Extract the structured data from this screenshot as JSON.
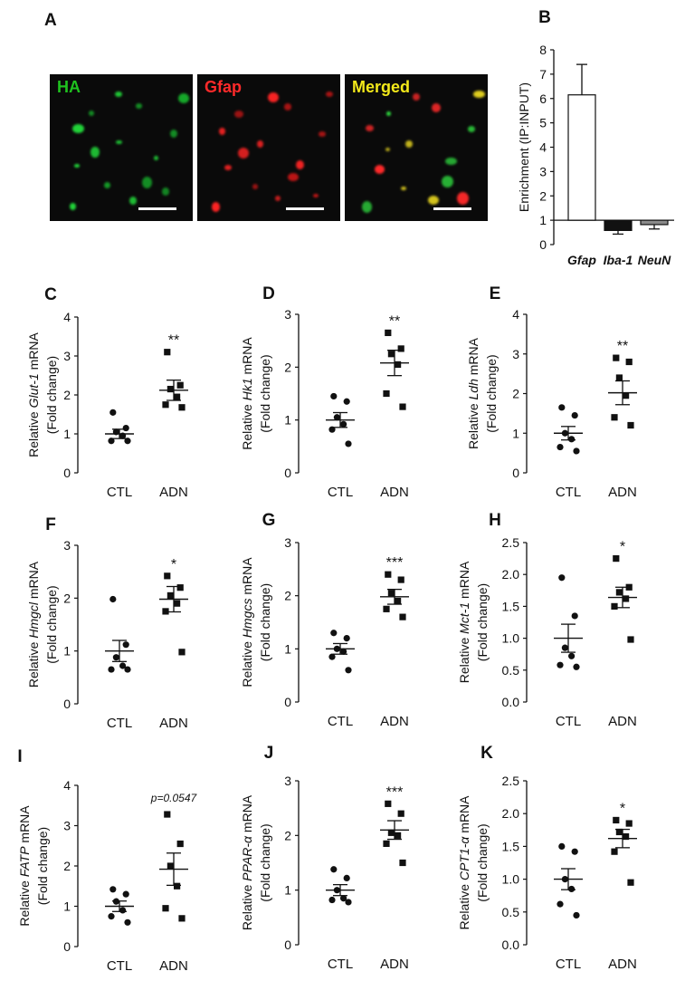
{
  "panel_a": {
    "letter": "A",
    "images": [
      {
        "label": "HA",
        "label_color": "#1fc21f",
        "cell_colors": [
          "#22d83a",
          "#16a82a"
        ]
      },
      {
        "label": "Gfap",
        "label_color": "#ff2a2a",
        "cell_colors": [
          "#ff2424",
          "#c41616"
        ]
      },
      {
        "label": "Merged",
        "label_color": "#f2e81a",
        "cell_colors": [
          "#ff2a2a",
          "#2fd83f",
          "#e8d620"
        ]
      }
    ]
  },
  "chart_data": [
    {
      "panel": "B",
      "type": "bar",
      "categories": [
        "Gfap",
        "Iba-1",
        "NeuN"
      ],
      "values": [
        6.15,
        0.58,
        0.82
      ],
      "errors": [
        1.25,
        0.15,
        0.18
      ],
      "colors": [
        "#ffffff",
        "#111111",
        "#8a8a8a"
      ],
      "baseline": 1,
      "ylabel": "Enrichment (IP:INPUT)",
      "ylim": [
        0,
        8
      ],
      "yticks": [
        "0",
        "1",
        "2",
        "3",
        "4",
        "5",
        "6",
        "7",
        "8"
      ],
      "grid": false
    },
    {
      "panel": "C",
      "type": "scatter",
      "gene": "Glut-1",
      "ylabel_prefix": "Relative ",
      "ylabel_suffix": " mRNA",
      "ylabel2": "(Fold change)",
      "categories": [
        "CTL",
        "ADN"
      ],
      "ylim": [
        0,
        4
      ],
      "yticks": [
        "0",
        "1",
        "2",
        "3",
        "4"
      ],
      "groups": [
        {
          "name": "CTL",
          "marker": "circle",
          "points": [
            1.55,
            1.15,
            1.05,
            0.95,
            0.82,
            0.82
          ],
          "mean": 1.0,
          "sem": 0.12
        },
        {
          "name": "ADN",
          "marker": "square",
          "points": [
            3.1,
            2.25,
            2.15,
            1.95,
            1.75,
            1.68
          ],
          "mean": 2.12,
          "sem": 0.26
        }
      ],
      "annotation": "**"
    },
    {
      "panel": "D",
      "type": "scatter",
      "gene": "Hk1",
      "ylabel_prefix": "Relative ",
      "ylabel_suffix": " mRNA",
      "ylabel2": "(Fold change)",
      "categories": [
        "CTL",
        "ADN"
      ],
      "ylim": [
        0,
        3
      ],
      "yticks": [
        "0",
        "1",
        "2",
        "3"
      ],
      "groups": [
        {
          "name": "CTL",
          "marker": "circle",
          "points": [
            1.45,
            1.35,
            1.05,
            0.92,
            0.82,
            0.55
          ],
          "mean": 1.0,
          "sem": 0.14
        },
        {
          "name": "ADN",
          "marker": "square",
          "points": [
            2.65,
            2.35,
            2.25,
            2.05,
            1.5,
            1.25
          ],
          "mean": 2.08,
          "sem": 0.24
        }
      ],
      "annotation": "**"
    },
    {
      "panel": "E",
      "type": "scatter",
      "gene": "Ldh",
      "ylabel_prefix": "Relative ",
      "ylabel_suffix": " mRNA",
      "ylabel2": "(Fold change)",
      "categories": [
        "CTL",
        "ADN"
      ],
      "ylim": [
        0,
        4
      ],
      "yticks": [
        "0",
        "1",
        "2",
        "3",
        "4"
      ],
      "groups": [
        {
          "name": "CTL",
          "marker": "circle",
          "points": [
            1.65,
            1.45,
            1.0,
            0.85,
            0.65,
            0.55
          ],
          "mean": 1.0,
          "sem": 0.17
        },
        {
          "name": "ADN",
          "marker": "square",
          "points": [
            2.9,
            2.8,
            2.4,
            1.95,
            1.4,
            1.2
          ],
          "mean": 2.02,
          "sem": 0.3
        }
      ],
      "annotation": "**"
    },
    {
      "panel": "F",
      "type": "scatter",
      "gene": "Hmgcl",
      "ylabel_prefix": "Relative ",
      "ylabel_suffix": " mRNA",
      "ylabel2": "(Fold change)",
      "categories": [
        "CTL",
        "ADN"
      ],
      "ylim": [
        0,
        3
      ],
      "yticks": [
        "0",
        "1",
        "2",
        "3"
      ],
      "groups": [
        {
          "name": "CTL",
          "marker": "circle",
          "points": [
            1.98,
            1.12,
            0.88,
            0.72,
            0.65,
            0.65
          ],
          "mean": 1.0,
          "sem": 0.2
        },
        {
          "name": "ADN",
          "marker": "square",
          "points": [
            2.42,
            2.2,
            2.05,
            1.9,
            1.75,
            0.98
          ],
          "mean": 1.98,
          "sem": 0.24
        }
      ],
      "annotation": "*"
    },
    {
      "panel": "G",
      "type": "scatter",
      "gene": "Hmgcs",
      "ylabel_prefix": "Relative ",
      "ylabel_suffix": " mRNA",
      "ylabel2": "(Fold change)",
      "categories": [
        "CTL",
        "ADN"
      ],
      "ylim": [
        0,
        3
      ],
      "yticks": [
        "0",
        "1",
        "2",
        "3"
      ],
      "groups": [
        {
          "name": "CTL",
          "marker": "circle",
          "points": [
            1.3,
            1.2,
            1.0,
            0.95,
            0.85,
            0.6
          ],
          "mean": 1.0,
          "sem": 0.1
        },
        {
          "name": "ADN",
          "marker": "square",
          "points": [
            2.4,
            2.3,
            2.05,
            1.9,
            1.75,
            1.6
          ],
          "mean": 1.98,
          "sem": 0.14
        }
      ],
      "annotation": "***"
    },
    {
      "panel": "H",
      "type": "scatter",
      "gene": "Mct-1",
      "ylabel_prefix": "Relative ",
      "ylabel_suffix": " mRNA",
      "ylabel2": "(Fold change)",
      "categories": [
        "CTL",
        "ADN"
      ],
      "ylim": [
        0,
        2.5
      ],
      "yticks": [
        "0.0",
        "0.5",
        "1.0",
        "1.5",
        "2.0",
        "2.5"
      ],
      "groups": [
        {
          "name": "CTL",
          "marker": "circle",
          "points": [
            1.95,
            1.35,
            0.85,
            0.72,
            0.58,
            0.55
          ],
          "mean": 1.0,
          "sem": 0.22
        },
        {
          "name": "ADN",
          "marker": "square",
          "points": [
            2.25,
            1.8,
            1.72,
            1.62,
            1.5,
            0.98
          ],
          "mean": 1.64,
          "sem": 0.16
        }
      ],
      "annotation": "*"
    },
    {
      "panel": "I",
      "type": "scatter",
      "gene": "FATP",
      "ylabel_prefix": "Relative ",
      "ylabel_suffix": " mRNA",
      "ylabel2": "(Fold change)",
      "categories": [
        "CTL",
        "ADN"
      ],
      "ylim": [
        0,
        4
      ],
      "yticks": [
        "0",
        "1",
        "2",
        "3",
        "4"
      ],
      "groups": [
        {
          "name": "CTL",
          "marker": "circle",
          "points": [
            1.42,
            1.3,
            1.12,
            0.9,
            0.75,
            0.6
          ],
          "mean": 1.0,
          "sem": 0.13
        },
        {
          "name": "ADN",
          "marker": "square",
          "points": [
            3.28,
            2.55,
            2.0,
            1.5,
            0.95,
            0.7
          ],
          "mean": 1.92,
          "sem": 0.4
        }
      ],
      "annotation": "p=0.0547"
    },
    {
      "panel": "J",
      "type": "scatter",
      "gene": "PPAR-α",
      "ylabel_prefix": "Relative ",
      "ylabel_suffix": " mRNA",
      "ylabel2": "(Fold change)",
      "categories": [
        "CTL",
        "ADN"
      ],
      "ylim": [
        0,
        3
      ],
      "yticks": [
        "0",
        "1",
        "2",
        "3"
      ],
      "groups": [
        {
          "name": "CTL",
          "marker": "circle",
          "points": [
            1.38,
            1.22,
            1.0,
            0.85,
            0.82,
            0.78
          ],
          "mean": 1.0,
          "sem": 0.1
        },
        {
          "name": "ADN",
          "marker": "square",
          "points": [
            2.58,
            2.4,
            2.05,
            2.0,
            1.85,
            1.5
          ],
          "mean": 2.1,
          "sem": 0.17
        }
      ],
      "annotation": "***"
    },
    {
      "panel": "K",
      "type": "scatter",
      "gene": "CPT1-α",
      "ylabel_prefix": "Relative ",
      "ylabel_suffix": " mRNA",
      "ylabel2": "(Fold change)",
      "categories": [
        "CTL",
        "ADN"
      ],
      "ylim": [
        0,
        2.5
      ],
      "yticks": [
        "0.0",
        "0.5",
        "1.0",
        "1.5",
        "2.0",
        "2.5"
      ],
      "groups": [
        {
          "name": "CTL",
          "marker": "circle",
          "points": [
            1.5,
            1.42,
            1.0,
            0.85,
            0.62,
            0.45
          ],
          "mean": 1.0,
          "sem": 0.16
        },
        {
          "name": "ADN",
          "marker": "square",
          "points": [
            1.9,
            1.85,
            1.72,
            1.65,
            1.42,
            0.95
          ],
          "mean": 1.62,
          "sem": 0.14
        }
      ],
      "annotation": "*"
    }
  ]
}
